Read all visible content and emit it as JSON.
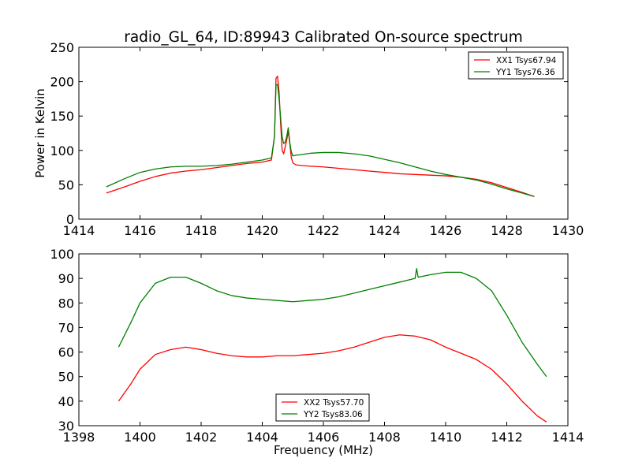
{
  "title": "radio_GL_64, ID:89943 Calibrated On-source spectrum",
  "colors": {
    "xx": "#ff0000",
    "yy": "#008000",
    "frame": "#000000",
    "background": "#ffffff"
  },
  "chart_data": [
    {
      "type": "line",
      "title": "radio_GL_64, ID:89943 Calibrated On-source spectrum",
      "xlabel": "",
      "ylabel": "Power in Kelvin",
      "xlim": [
        1414,
        1430
      ],
      "ylim": [
        0,
        250
      ],
      "xticks": [
        "1414",
        "1416",
        "1418",
        "1420",
        "1422",
        "1424",
        "1426",
        "1428",
        "1430"
      ],
      "yticks": [
        "0",
        "50",
        "100",
        "150",
        "200",
        "250"
      ],
      "grid": false,
      "legend_position": "top-right",
      "series": [
        {
          "name": "XX1 Tsys67.94",
          "color": "#ff0000",
          "x": [
            1414.9,
            1415.5,
            1416,
            1416.5,
            1417,
            1417.5,
            1418,
            1418.5,
            1419,
            1419.5,
            1420,
            1420.3,
            1420.4,
            1420.45,
            1420.5,
            1420.55,
            1420.6,
            1420.65,
            1420.7,
            1420.75,
            1420.8,
            1420.85,
            1420.9,
            1420.95,
            1421,
            1421.1,
            1421.3,
            1421.6,
            1422,
            1422.5,
            1423,
            1423.5,
            1424,
            1424.5,
            1425,
            1425.5,
            1426,
            1426.5,
            1427,
            1427.5,
            1428,
            1428.5,
            1428.9
          ],
          "y": [
            38,
            47,
            55,
            62,
            67,
            70,
            72,
            75,
            78,
            81,
            83,
            86,
            120,
            205,
            208,
            185,
            140,
            100,
            95,
            105,
            115,
            128,
            110,
            90,
            82,
            79,
            78,
            77,
            76,
            74,
            72,
            70,
            68,
            66,
            65,
            64,
            63,
            61,
            58,
            53,
            46,
            39,
            33
          ]
        },
        {
          "name": "YY1 Tsys76.36",
          "color": "#008000",
          "x": [
            1414.9,
            1415.5,
            1416,
            1416.5,
            1417,
            1417.5,
            1418,
            1418.5,
            1419,
            1419.5,
            1420,
            1420.3,
            1420.4,
            1420.45,
            1420.5,
            1420.55,
            1420.6,
            1420.65,
            1420.7,
            1420.75,
            1420.8,
            1420.85,
            1420.9,
            1420.95,
            1421,
            1421.1,
            1421.3,
            1421.6,
            1422,
            1422.5,
            1423,
            1423.5,
            1424,
            1424.5,
            1425,
            1425.5,
            1426,
            1426.5,
            1427,
            1427.5,
            1428,
            1428.5,
            1428.9
          ],
          "y": [
            47,
            59,
            68,
            73,
            76,
            77,
            77,
            78,
            80,
            83,
            86,
            89,
            120,
            195,
            196,
            175,
            148,
            120,
            110,
            112,
            120,
            133,
            112,
            98,
            92,
            93,
            94,
            96,
            97,
            97,
            95,
            92,
            87,
            82,
            76,
            70,
            65,
            61,
            57,
            51,
            44,
            38,
            33
          ]
        }
      ]
    },
    {
      "type": "line",
      "title": "",
      "xlabel": "Frequency (MHz)",
      "ylabel": "",
      "xlim": [
        1398,
        1414
      ],
      "ylim": [
        30,
        100
      ],
      "xticks": [
        "1398",
        "1400",
        "1402",
        "1404",
        "1406",
        "1408",
        "1410",
        "1412",
        "1414"
      ],
      "yticks": [
        "30",
        "40",
        "50",
        "60",
        "70",
        "80",
        "90",
        "100"
      ],
      "grid": false,
      "legend_position": "bottom-center",
      "series": [
        {
          "name": "XX2 Tsys57.70",
          "color": "#ff0000",
          "x": [
            1399.3,
            1399.7,
            1400,
            1400.5,
            1401,
            1401.5,
            1402,
            1402.5,
            1403,
            1403.5,
            1404,
            1404.5,
            1405,
            1405.5,
            1406,
            1406.5,
            1407,
            1407.5,
            1408,
            1408.5,
            1409,
            1409.5,
            1410,
            1410.5,
            1411,
            1411.5,
            1412,
            1412.5,
            1413,
            1413.3
          ],
          "y": [
            40,
            47,
            53,
            59,
            61,
            62,
            61,
            59.5,
            58.5,
            58,
            58,
            58.5,
            58.5,
            59,
            59.5,
            60.5,
            62,
            64,
            66,
            67,
            66.5,
            65,
            62,
            59.5,
            57,
            53,
            47,
            40,
            34,
            31.5
          ]
        },
        {
          "name": "YY2 Tsys83.06",
          "color": "#008000",
          "x": [
            1399.3,
            1399.7,
            1400,
            1400.5,
            1401,
            1401.5,
            1402,
            1402.5,
            1403,
            1403.5,
            1404,
            1404.5,
            1405,
            1405.5,
            1406,
            1406.5,
            1407,
            1407.5,
            1408,
            1408.5,
            1409,
            1409.05,
            1409.1,
            1409.5,
            1410,
            1410.5,
            1411,
            1411.5,
            1412,
            1412.5,
            1413,
            1413.3
          ],
          "y": [
            62,
            72,
            80,
            88,
            90.5,
            90.5,
            88,
            85,
            83,
            82,
            81.5,
            81,
            80.5,
            81,
            81.5,
            82.5,
            84,
            85.5,
            87,
            88.5,
            90,
            94,
            90.5,
            91.5,
            92.5,
            92.5,
            90,
            85,
            75,
            64,
            55,
            50
          ]
        }
      ]
    }
  ]
}
